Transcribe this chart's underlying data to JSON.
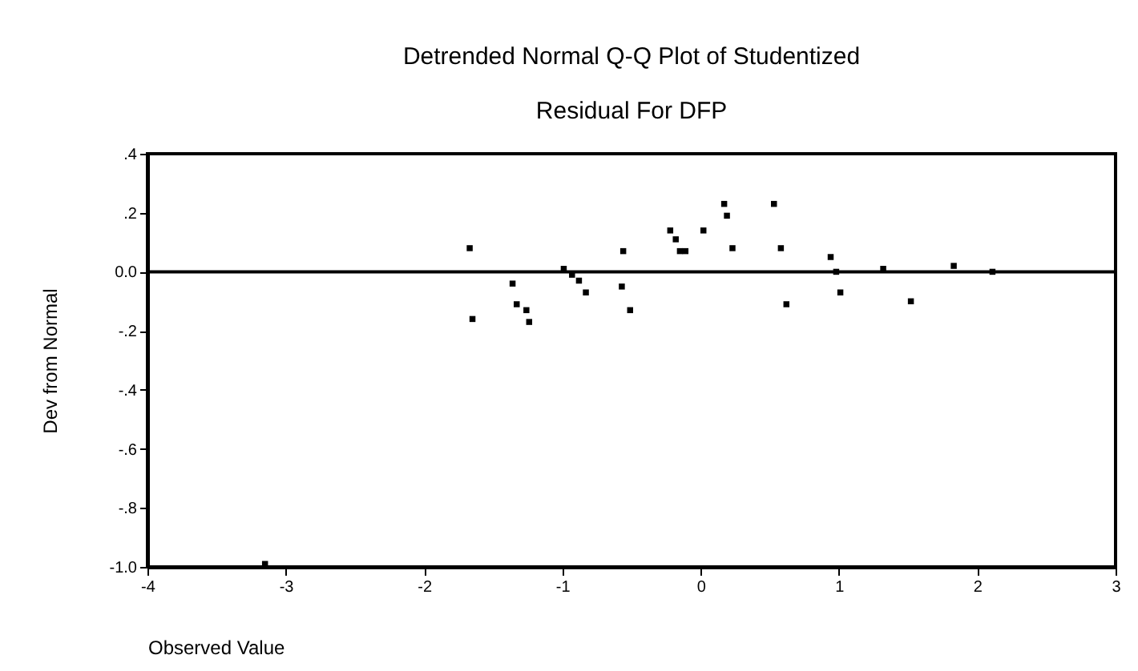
{
  "chart_data": {
    "type": "scatter",
    "title": "Detrended Normal Q-Q Plot of Studentized Residual For DFP",
    "xlabel": "Observed Value",
    "ylabel": "Dev from Normal",
    "x": [
      -3.15,
      -1.67,
      -1.65,
      -1.36,
      -1.33,
      -1.26,
      -1.24,
      -0.99,
      -0.93,
      -0.88,
      -0.83,
      -0.56,
      -0.57,
      -0.51,
      -0.22,
      -0.18,
      -0.15,
      -0.11,
      0.02,
      0.17,
      0.19,
      0.23,
      0.53,
      0.58,
      0.62,
      0.94,
      0.98,
      1.01,
      1.32,
      1.52,
      1.83,
      2.11
    ],
    "series": [
      {
        "color": "#000000",
        "values": [
          -0.99,
          0.08,
          -0.16,
          -0.04,
          -0.11,
          -0.13,
          -0.17,
          0.01,
          -0.01,
          -0.03,
          -0.07,
          0.07,
          -0.05,
          -0.13,
          0.14,
          0.11,
          0.07,
          0.07,
          0.14,
          0.23,
          0.19,
          0.08,
          0.23,
          0.08,
          -0.11,
          0.05,
          0.0,
          -0.07,
          0.01,
          -0.1,
          0.02,
          0.0
        ]
      }
    ],
    "xlim": [
      -4,
      3
    ],
    "xticks": [
      -4,
      -3,
      -2,
      -1,
      0,
      1,
      2,
      3
    ],
    "ylim": [
      -1.0,
      0.4
    ],
    "yticks": [
      {
        "value": 0.4,
        "label": ".4"
      },
      {
        "value": 0.2,
        "label": ".2"
      },
      {
        "value": 0.0,
        "label": "0.0"
      },
      {
        "value": -0.2,
        "label": "-.2"
      },
      {
        "value": -0.4,
        "label": "-.4"
      },
      {
        "value": -0.6,
        "label": "-.6"
      },
      {
        "value": -0.8,
        "label": "-.8"
      },
      {
        "value": -1.0,
        "label": "-1.0"
      }
    ],
    "ref_lines": [
      {
        "axis": "y",
        "value": 0,
        "color": "#000000"
      }
    ],
    "grid": false,
    "marker": "square"
  }
}
